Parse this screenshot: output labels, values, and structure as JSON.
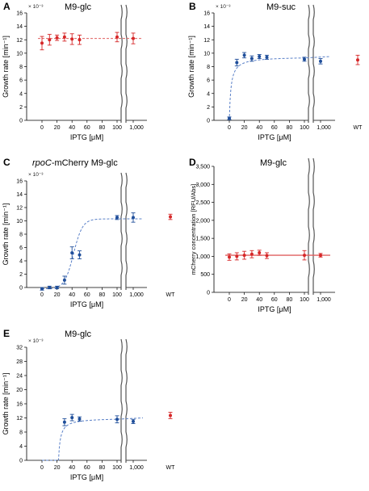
{
  "figure": {
    "panels": [
      {
        "letter": "A",
        "title": "M9-glc",
        "exponent": "× 10⁻³"
      },
      {
        "letter": "B",
        "title": "M9-suc",
        "exponent": "× 10⁻³"
      },
      {
        "letter": "C",
        "title_italic": "rpoC",
        "title": "-mCherry M9-glc",
        "exponent": "× 10⁻³"
      },
      {
        "letter": "D",
        "title": "M9-glc",
        "exponent": ""
      },
      {
        "letter": "E",
        "title": "M9-glc",
        "exponent": "× 10⁻³"
      }
    ]
  },
  "chart_data": [
    {
      "panel": "A",
      "type": "scatter",
      "title": "M9-glc",
      "xlabel": "IPTG [μM]",
      "ylabel": "Growth rate [min⁻¹]",
      "x_ticks": [
        "0",
        "20",
        "40",
        "60",
        "80",
        "100",
        "1,000"
      ],
      "y_ticks": [
        "0",
        "2",
        "4",
        "6",
        "8",
        "10",
        "12",
        "14",
        "16"
      ],
      "ylim": [
        0,
        16
      ],
      "y_scale_factor": "× 10⁻³",
      "axis_break": "between 100 and 1,000",
      "series": [
        {
          "color": "#d62728",
          "fit": "flat dashed line at 12.2",
          "x": [
            0,
            10,
            20,
            30,
            40,
            50,
            100,
            1000
          ],
          "y": [
            11.5,
            12.0,
            12.3,
            12.4,
            12.1,
            12.0,
            12.4,
            12.2
          ],
          "err": [
            1.0,
            0.8,
            0.4,
            0.6,
            0.8,
            0.7,
            0.7,
            0.8
          ]
        }
      ]
    },
    {
      "panel": "B",
      "type": "scatter",
      "title": "M9-suc",
      "xlabel": "IPTG [μM]",
      "ylabel": "Growth rate [min⁻¹]",
      "x_ticks": [
        "0",
        "20",
        "40",
        "60",
        "80",
        "100",
        "1,000",
        "WT"
      ],
      "y_ticks": [
        "0",
        "2",
        "4",
        "6",
        "8",
        "10",
        "12",
        "14",
        "16"
      ],
      "ylim": [
        0,
        16
      ],
      "y_scale_factor": "× 10⁻³",
      "axis_break": "between 100 and 1,000",
      "series": [
        {
          "color": "#1f4e9a",
          "fit": "saturating dashed curve to 9.5",
          "x": [
            0,
            10,
            20,
            30,
            40,
            50,
            100,
            1000
          ],
          "y": [
            0.3,
            8.6,
            9.7,
            9.2,
            9.5,
            9.4,
            9.1,
            8.8
          ],
          "err": [
            0.2,
            0.5,
            0.4,
            0.4,
            0.3,
            0.3,
            0.3,
            0.4
          ]
        },
        {
          "name": "WT",
          "color": "#d62728",
          "x": [
            "WT"
          ],
          "y": [
            9.0
          ],
          "err": [
            0.7
          ]
        }
      ]
    },
    {
      "panel": "C",
      "type": "scatter",
      "title": "rpoC-mCherry M9-glc",
      "xlabel": "IPTG [μM]",
      "ylabel": "Growth rate [min⁻¹]",
      "x_ticks": [
        "0",
        "20",
        "40",
        "60",
        "80",
        "100",
        "1,000",
        "WT"
      ],
      "y_ticks": [
        "0",
        "2",
        "4",
        "6",
        "8",
        "10",
        "12",
        "14",
        "16"
      ],
      "ylim": [
        0,
        16
      ],
      "y_scale_factor": "× 10⁻³",
      "axis_break": "between 100 and 1,000",
      "series": [
        {
          "color": "#1f4e9a",
          "fit": "sigmoidal dashed curve to 10.5",
          "x": [
            0,
            10,
            20,
            30,
            40,
            50,
            100,
            1000
          ],
          "y": [
            -0.2,
            0.0,
            0.0,
            1.1,
            5.2,
            4.9,
            10.5,
            10.5
          ],
          "err": [
            0.2,
            0.2,
            0.2,
            0.6,
            0.9,
            0.6,
            0.3,
            0.7
          ]
        },
        {
          "name": "WT",
          "color": "#d62728",
          "x": [
            "WT"
          ],
          "y": [
            10.6
          ],
          "err": [
            0.4
          ]
        }
      ]
    },
    {
      "panel": "D",
      "type": "scatter",
      "title": "M9-glc",
      "xlabel": "IPTG [μM]",
      "ylabel": "mCherry concentration [RFU/Abs]",
      "x_ticks": [
        "0",
        "20",
        "40",
        "60",
        "80",
        "100",
        "1,000"
      ],
      "y_ticks": [
        "0",
        "500",
        "1,000",
        "1,500",
        "2,000",
        "2,500",
        "3,000",
        "3,500"
      ],
      "ylim": [
        0,
        3500
      ],
      "axis_break": "between 100 and 1,000",
      "series": [
        {
          "color": "#d62728",
          "fit": "flat solid line at 1,030",
          "x": [
            0,
            10,
            20,
            30,
            40,
            50,
            100,
            1000
          ],
          "y": [
            980,
            1000,
            1030,
            1060,
            1100,
            1020,
            1030,
            1030
          ],
          "err": [
            90,
            100,
            110,
            100,
            70,
            80,
            130,
            50
          ]
        }
      ]
    },
    {
      "panel": "E",
      "type": "scatter",
      "title": "M9-glc",
      "xlabel": "IPTG [μM]",
      "ylabel": "Growth rate [min⁻¹]",
      "x_ticks": [
        "0",
        "20",
        "40",
        "60",
        "80",
        "100",
        "1,000",
        "WT"
      ],
      "y_ticks": [
        "0",
        "4",
        "8",
        "12",
        "16",
        "20",
        "24",
        "28",
        "32"
      ],
      "ylim": [
        0,
        32
      ],
      "y_scale_factor": "× 10⁻³",
      "axis_break": "between 100 and 1,000",
      "series": [
        {
          "color": "#1f4e9a",
          "fit": "dashed curve, zero until ~22 then rising to 12",
          "x": [
            30,
            40,
            50,
            100,
            1000
          ],
          "y": [
            10.8,
            12.1,
            11.7,
            11.6,
            11.0
          ],
          "err": [
            1.0,
            0.9,
            0.6,
            1.0,
            0.6
          ]
        },
        {
          "name": "WT",
          "color": "#d62728",
          "x": [
            "WT"
          ],
          "y": [
            12.7
          ],
          "err": [
            0.9
          ]
        }
      ]
    }
  ]
}
